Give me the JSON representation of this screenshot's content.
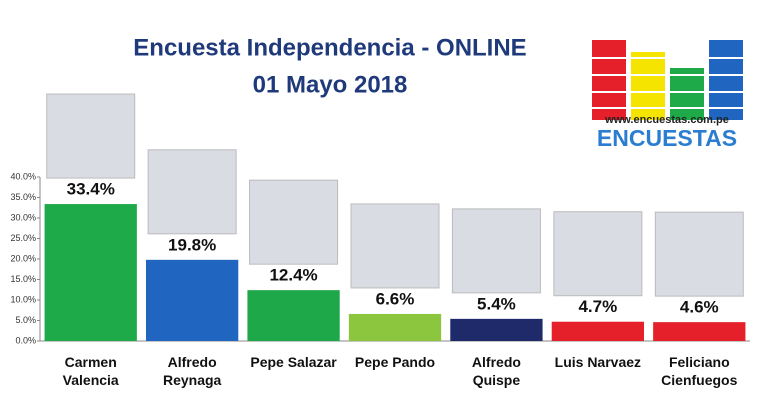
{
  "chart_data": {
    "type": "bar",
    "title": "Encuesta Independencia - ONLINE",
    "subtitle": "01 Mayo 2018",
    "logo_url": "www.encuestas.com.pe",
    "logo_name": "ENCUESTAS",
    "categories": [
      "Carmen Valencia",
      "Alfredo Reynaga",
      "Pepe Salazar",
      "Pepe Pando",
      "Alfredo Quispe",
      "Luis Narvaez",
      "Feliciano Cienfuegos"
    ],
    "values": [
      33.4,
      19.8,
      12.4,
      6.6,
      5.4,
      4.7,
      4.6
    ],
    "value_labels": [
      "33.4%",
      "19.8%",
      "12.4%",
      "6.6%",
      "5.4%",
      "4.7%",
      "4.6%"
    ],
    "colors": [
      "#1faa4a",
      "#2066c0",
      "#1fa849",
      "#8cc63f",
      "#1f2a6b",
      "#e5202a",
      "#e5202a"
    ],
    "ylim": [
      0,
      40
    ],
    "yticks": [
      {
        "value": 0,
        "label": "0.0%"
      },
      {
        "value": 5,
        "label": "5.0%"
      },
      {
        "value": 10,
        "label": "10.0%"
      },
      {
        "value": 15,
        "label": "15.0%"
      },
      {
        "value": 20,
        "label": "20.0%"
      },
      {
        "value": 25,
        "label": "25.0%"
      },
      {
        "value": 30,
        "label": "30.0%"
      },
      {
        "value": 35,
        "label": "35.0%"
      },
      {
        "value": 40,
        "label": "40.0%"
      }
    ],
    "grid": false
  }
}
